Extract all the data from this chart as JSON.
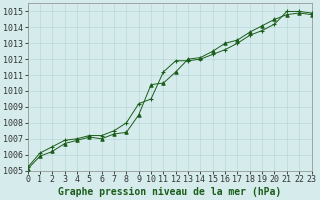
{
  "xlabel": "Graphe pression niveau de la mer (hPa)",
  "ylim": [
    1005,
    1015.5
  ],
  "xlim": [
    0,
    23
  ],
  "yticks": [
    1005,
    1006,
    1007,
    1008,
    1009,
    1010,
    1011,
    1012,
    1013,
    1014,
    1015
  ],
  "xticks": [
    0,
    1,
    2,
    3,
    4,
    5,
    6,
    7,
    8,
    9,
    10,
    11,
    12,
    13,
    14,
    15,
    16,
    17,
    18,
    19,
    20,
    21,
    22,
    23
  ],
  "background_color": "#d6ecec",
  "grid_color": "#b8d8d8",
  "line_color": "#1a5c1a",
  "line1_x": [
    0,
    1,
    2,
    3,
    4,
    5,
    6,
    7,
    8,
    9,
    10,
    11,
    12,
    13,
    14,
    15,
    16,
    17,
    18,
    19,
    20,
    21,
    22,
    23
  ],
  "line1_y": [
    1005.2,
    1006.1,
    1006.5,
    1006.9,
    1007.0,
    1007.2,
    1007.2,
    1007.5,
    1008.0,
    1009.2,
    1009.5,
    1011.2,
    1011.9,
    1011.9,
    1012.0,
    1012.3,
    1012.6,
    1013.0,
    1013.5,
    1013.8,
    1014.2,
    1015.0,
    1015.0,
    1014.9
  ],
  "line2_x": [
    0,
    1,
    2,
    3,
    4,
    5,
    6,
    7,
    8,
    9,
    10,
    11,
    12,
    13,
    14,
    15,
    16,
    17,
    18,
    19,
    20,
    21,
    22,
    23
  ],
  "line2_y": [
    1005.1,
    1005.9,
    1006.2,
    1006.7,
    1006.9,
    1007.1,
    1007.0,
    1007.3,
    1007.4,
    1008.5,
    1010.4,
    1010.5,
    1011.2,
    1012.0,
    1012.1,
    1012.5,
    1013.0,
    1013.2,
    1013.7,
    1014.1,
    1014.5,
    1014.8,
    1014.9,
    1014.8
  ],
  "tick_fontsize": 6.0,
  "label_fontsize": 7.0
}
